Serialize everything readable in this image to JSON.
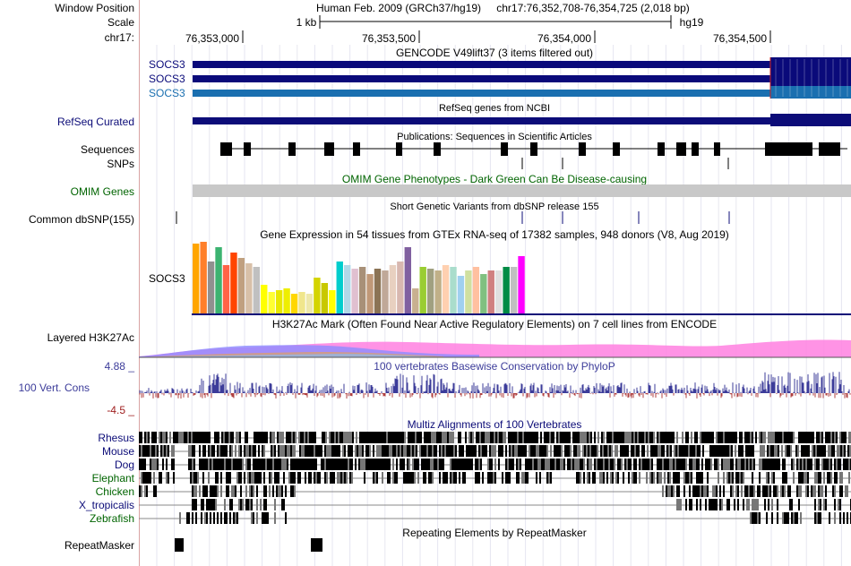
{
  "header": {
    "window_position_label": "Window Position",
    "scale_label": "Scale",
    "chrom_label": "chr17:",
    "assembly": "Human Feb. 2009 (GRCh37/hg19)",
    "position": "chr17:76,352,708-76,354,725 (2,018 bp)",
    "scale_text": "1 kb",
    "scale_db": "hg19",
    "ticks": [
      "76,353,000",
      "76,353,500",
      "76,354,000",
      "76,354,500"
    ]
  },
  "tracks": {
    "gencode": {
      "title": "GENCODE V49lift37 (3 items filtered out)",
      "items": [
        "SOCS3",
        "SOCS3",
        "SOCS3"
      ]
    },
    "refseq": {
      "label": "RefSeq Curated",
      "title": "RefSeq genes from NCBI"
    },
    "publications": {
      "label": "Sequences",
      "title": "Publications: Sequences in Scientific Articles"
    },
    "snps": {
      "label": "SNPs"
    },
    "omim": {
      "label": "OMIM Genes",
      "title": "OMIM Gene Phenotypes - Dark Green Can Be Disease-causing"
    },
    "dbsnp": {
      "label": "Common dbSNP(155)",
      "title": "Short Genetic Variants from dbSNP release 155"
    },
    "gtex": {
      "title": "Gene Expression in 54 tissues from GTEx RNA-seq of 17382 samples, 948 donors (V8, Aug 2019)",
      "gene": "SOCS3"
    },
    "h3k27ac": {
      "label": "Layered H3K27Ac",
      "title": "H3K27Ac Mark (Often Found Near Active Regulatory Elements) on 7 cell lines from ENCODE"
    },
    "cons": {
      "label": "100 Vert. Cons",
      "title": "100 vertebrates Basewise Conservation by PhyloP",
      "max": "4.88 _",
      "min": "-4.5 _"
    },
    "multiz": {
      "title": "Multiz Alignments of 100 Vertebrates",
      "species": [
        "Rhesus",
        "Mouse",
        "Dog",
        "Elephant",
        "Chicken",
        "X_tropicalis",
        "Zebrafish"
      ]
    },
    "repeatmasker": {
      "label": "RepeatMasker",
      "title": "Repeating Elements by RepeatMasker"
    }
  },
  "colors": {
    "gencode_dark": "#0a0a7a",
    "gencode_light": "#1a6fb0",
    "refseq": "#0c0c78",
    "omim_label": "#006400",
    "omim_bar": "#c8c8c8",
    "cons_pos": "#3c3c9a",
    "cons_neg": "#b04040",
    "species_primate": "#0c0c78",
    "species_mammal": "#0c0c78",
    "species_bird": "#006400",
    "species_fish": "#006400"
  }
}
